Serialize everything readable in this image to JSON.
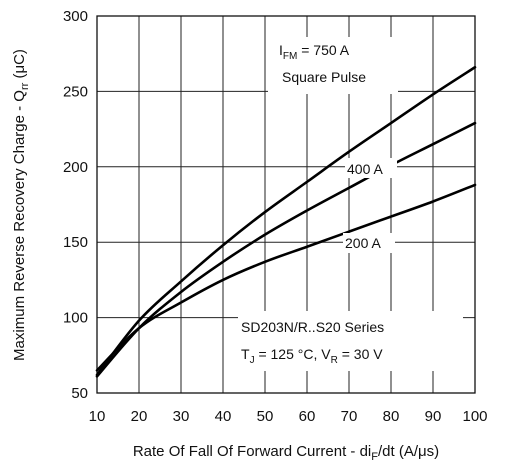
{
  "chart_data": {
    "type": "line",
    "xlabel_parts": [
      "Rate Of Fall Of Forward Current - di",
      "F",
      "/dt (A/μs)"
    ],
    "ylabel_parts": [
      "Maximum Reverse Recovery Charge - Q",
      "rr",
      " (μC)"
    ],
    "xlim": [
      10,
      100
    ],
    "ylim": [
      50,
      300
    ],
    "xticks": [
      10,
      20,
      30,
      40,
      50,
      60,
      70,
      80,
      90,
      100
    ],
    "yticks": [
      50,
      100,
      150,
      200,
      250,
      300
    ],
    "grid": true,
    "x": [
      10,
      20,
      30,
      40,
      50,
      60,
      70,
      80,
      90,
      100
    ],
    "series": [
      {
        "name": "750 A",
        "values": [
          62,
          98,
          124,
          148,
          170,
          190,
          210,
          229,
          248,
          266
        ]
      },
      {
        "name": "400 A",
        "values": [
          61,
          93,
          117,
          137,
          155,
          171,
          186,
          201,
          215,
          229
        ]
      },
      {
        "name": "200 A",
        "values": [
          65,
          93,
          110,
          125,
          137,
          147,
          157,
          167,
          177,
          188
        ]
      }
    ],
    "annotations": {
      "top_line1": {
        "pre": "I",
        "sub": "FM",
        "post": " = 750 A"
      },
      "top_line2": "Square Pulse",
      "label_400": "400 A",
      "label_200": "200 A",
      "bottom_line1": "SD203N/R..S20 Series",
      "bottom_line2": {
        "t": "T",
        "tsub": "J",
        "tval": " = 125 °C, V",
        "vsub": "R",
        "vval": " = 30 V"
      }
    }
  }
}
